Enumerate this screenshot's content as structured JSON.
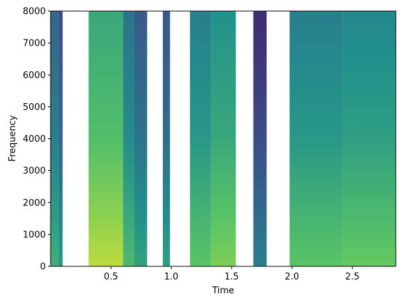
{
  "chart_data": {
    "type": "heatmap",
    "title": "",
    "xlabel": "Time",
    "ylabel": "Frequency",
    "xlim": [
      0.0,
      2.86
    ],
    "ylim": [
      0,
      8000
    ],
    "x_ticks": [
      0.5,
      1.0,
      1.5,
      2.0,
      2.5
    ],
    "x_tick_labels": [
      "0.5",
      "1.0",
      "1.5",
      "2.0",
      "2.5"
    ],
    "y_ticks": [
      0,
      1000,
      2000,
      3000,
      4000,
      5000,
      6000,
      7000,
      8000
    ],
    "y_tick_labels": [
      "0",
      "1000",
      "2000",
      "3000",
      "4000",
      "5000",
      "6000",
      "7000",
      "8000"
    ],
    "colormap": "viridis",
    "grid": false,
    "segments": [
      {
        "start": 0.0,
        "end": 0.065,
        "level": 0.45
      },
      {
        "start": 0.065,
        "end": 0.1,
        "level": 0.35
      },
      {
        "start": 0.315,
        "end": 0.6,
        "level": 0.72
      },
      {
        "start": 0.6,
        "end": 0.695,
        "level": 0.5
      },
      {
        "start": 0.695,
        "end": 0.8,
        "level": 0.4
      },
      {
        "start": 0.93,
        "end": 0.99,
        "level": 0.38
      },
      {
        "start": 1.155,
        "end": 1.33,
        "level": 0.55
      },
      {
        "start": 1.33,
        "end": 1.535,
        "level": 0.62
      },
      {
        "start": 1.68,
        "end": 1.79,
        "level": 0.25
      },
      {
        "start": 1.98,
        "end": 2.42,
        "level": 0.55
      },
      {
        "start": 2.42,
        "end": 2.86,
        "level": 0.58
      }
    ]
  }
}
